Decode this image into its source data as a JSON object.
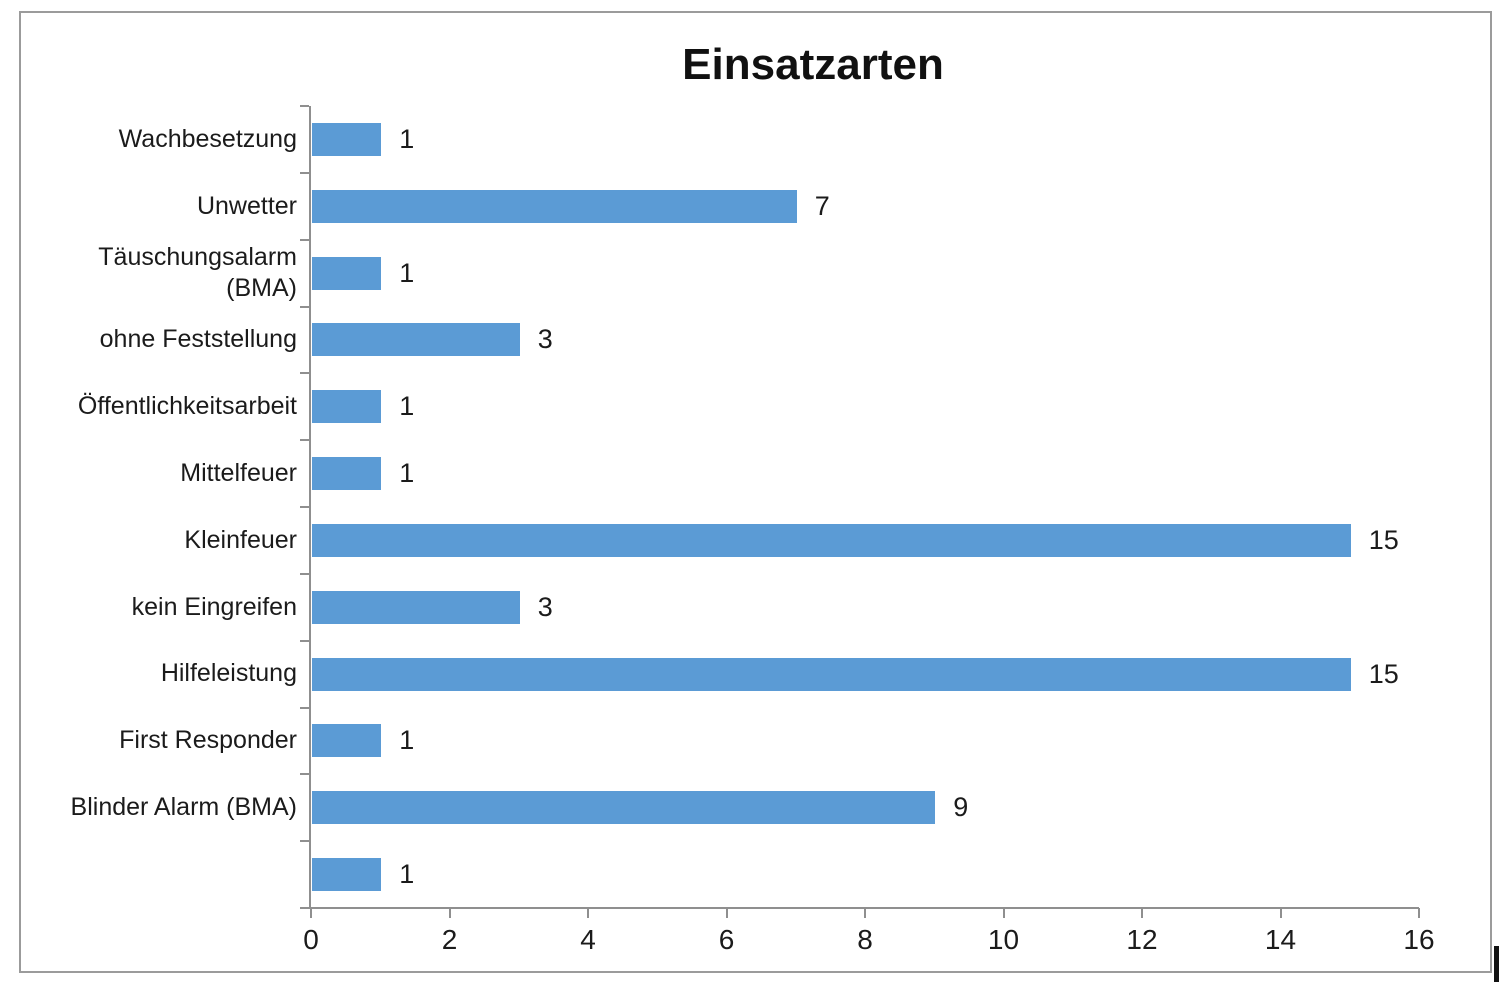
{
  "chart_data": {
    "type": "bar",
    "orientation": "horizontal",
    "title": "Einsatzarten",
    "categories": [
      "Wachbesetzung",
      "Unwetter",
      "Täuschungsalarm\n(BMA)",
      "ohne Feststellung",
      "Öffentlichkeitsarbeit",
      "Mittelfeuer",
      "Kleinfeuer",
      "kein Eingreifen",
      "Hilfeleistung",
      "First Responder",
      "Blinder Alarm (BMA)",
      ""
    ],
    "values": [
      1,
      7,
      1,
      3,
      1,
      1,
      15,
      3,
      15,
      1,
      9,
      1
    ],
    "data_labels": [
      "1",
      "7",
      "1",
      "3",
      "1",
      "1",
      "15",
      "3",
      "15",
      "1",
      "9",
      "1"
    ],
    "xlabel": "",
    "ylabel": "",
    "x_axis": {
      "min": 0,
      "max": 16,
      "tick_interval": 2,
      "tick_labels": [
        "0",
        "2",
        "4",
        "6",
        "8",
        "10",
        "12",
        "14",
        "16"
      ]
    },
    "legend": "none",
    "grid": "off",
    "colors": {
      "bar_fill": "#5B9BD5",
      "axis_line": "#8f8f8f",
      "frame_border": "#9b9b9b",
      "text": "#1b1b1b",
      "title_text": "#111111",
      "background": "#ffffff"
    }
  }
}
